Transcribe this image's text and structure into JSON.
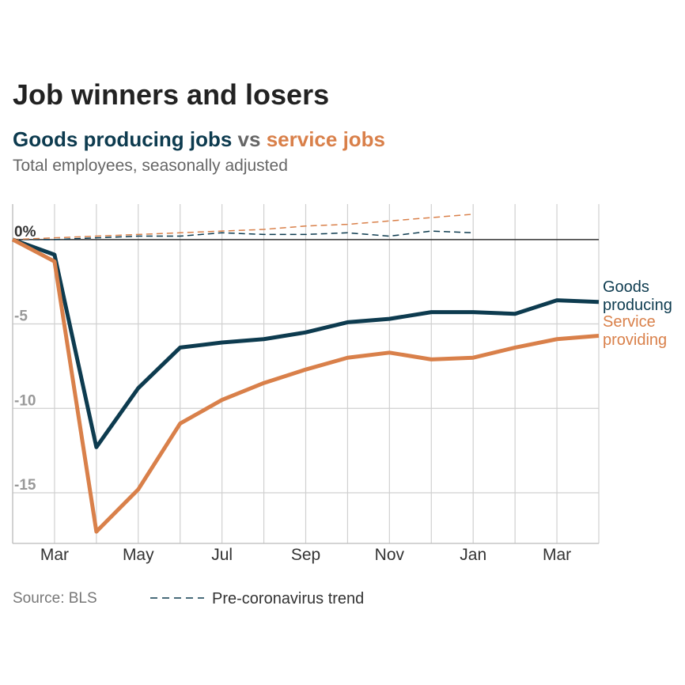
{
  "chart_data": {
    "type": "line",
    "title": "Job winners and losers",
    "subtitle": [
      {
        "text": "Goods producing jobs",
        "color": "#0d3b4f"
      },
      {
        "text": " vs ",
        "color": "#666666"
      },
      {
        "text": "service jobs",
        "color": "#d9804a"
      }
    ],
    "note": "Total employees, seasonally adjusted",
    "source": "Source: BLS",
    "categories": [
      null,
      "Mar",
      null,
      "May",
      null,
      "Jul",
      null,
      "Sep",
      null,
      "Nov",
      null,
      "Jan",
      null,
      "Mar",
      null
    ],
    "series": [
      {
        "name": "Goods producing",
        "color": "#0d3b4f",
        "values": [
          0,
          -0.9,
          -12.3,
          -8.8,
          -6.4,
          -6.1,
          -5.9,
          -5.5,
          -4.9,
          -4.7,
          -4.3,
          -4.3,
          -4.4,
          -3.6,
          -3.7
        ]
      },
      {
        "name": "Service providing",
        "color": "#d9804a",
        "values": [
          0,
          -1.3,
          -17.3,
          -14.8,
          -10.9,
          -9.5,
          -8.5,
          -7.7,
          -7.0,
          -6.7,
          -7.1,
          -7.0,
          -6.4,
          -5.9,
          -5.7
        ]
      }
    ],
    "trend": {
      "label": "Pre-coronavirus trend",
      "color": "#0d3b4f",
      "series": [
        {
          "color": "#0d3b4f",
          "values": [
            0,
            0,
            0.1,
            0.2,
            0.2,
            0.4,
            0.3,
            0.3,
            0.4,
            0.2,
            0.5,
            0.4,
            null,
            null,
            null
          ]
        },
        {
          "color": "#d9804a",
          "values": [
            0,
            0.1,
            0.2,
            0.3,
            0.4,
            0.5,
            0.6,
            0.8,
            0.9,
            1.1,
            1.3,
            1.5,
            null,
            null,
            null
          ]
        }
      ]
    },
    "ylim": [
      -18,
      2.1
    ],
    "yticks": [
      {
        "value": 0,
        "label": "0%"
      },
      -5,
      -10,
      -15
    ],
    "grid": true
  }
}
